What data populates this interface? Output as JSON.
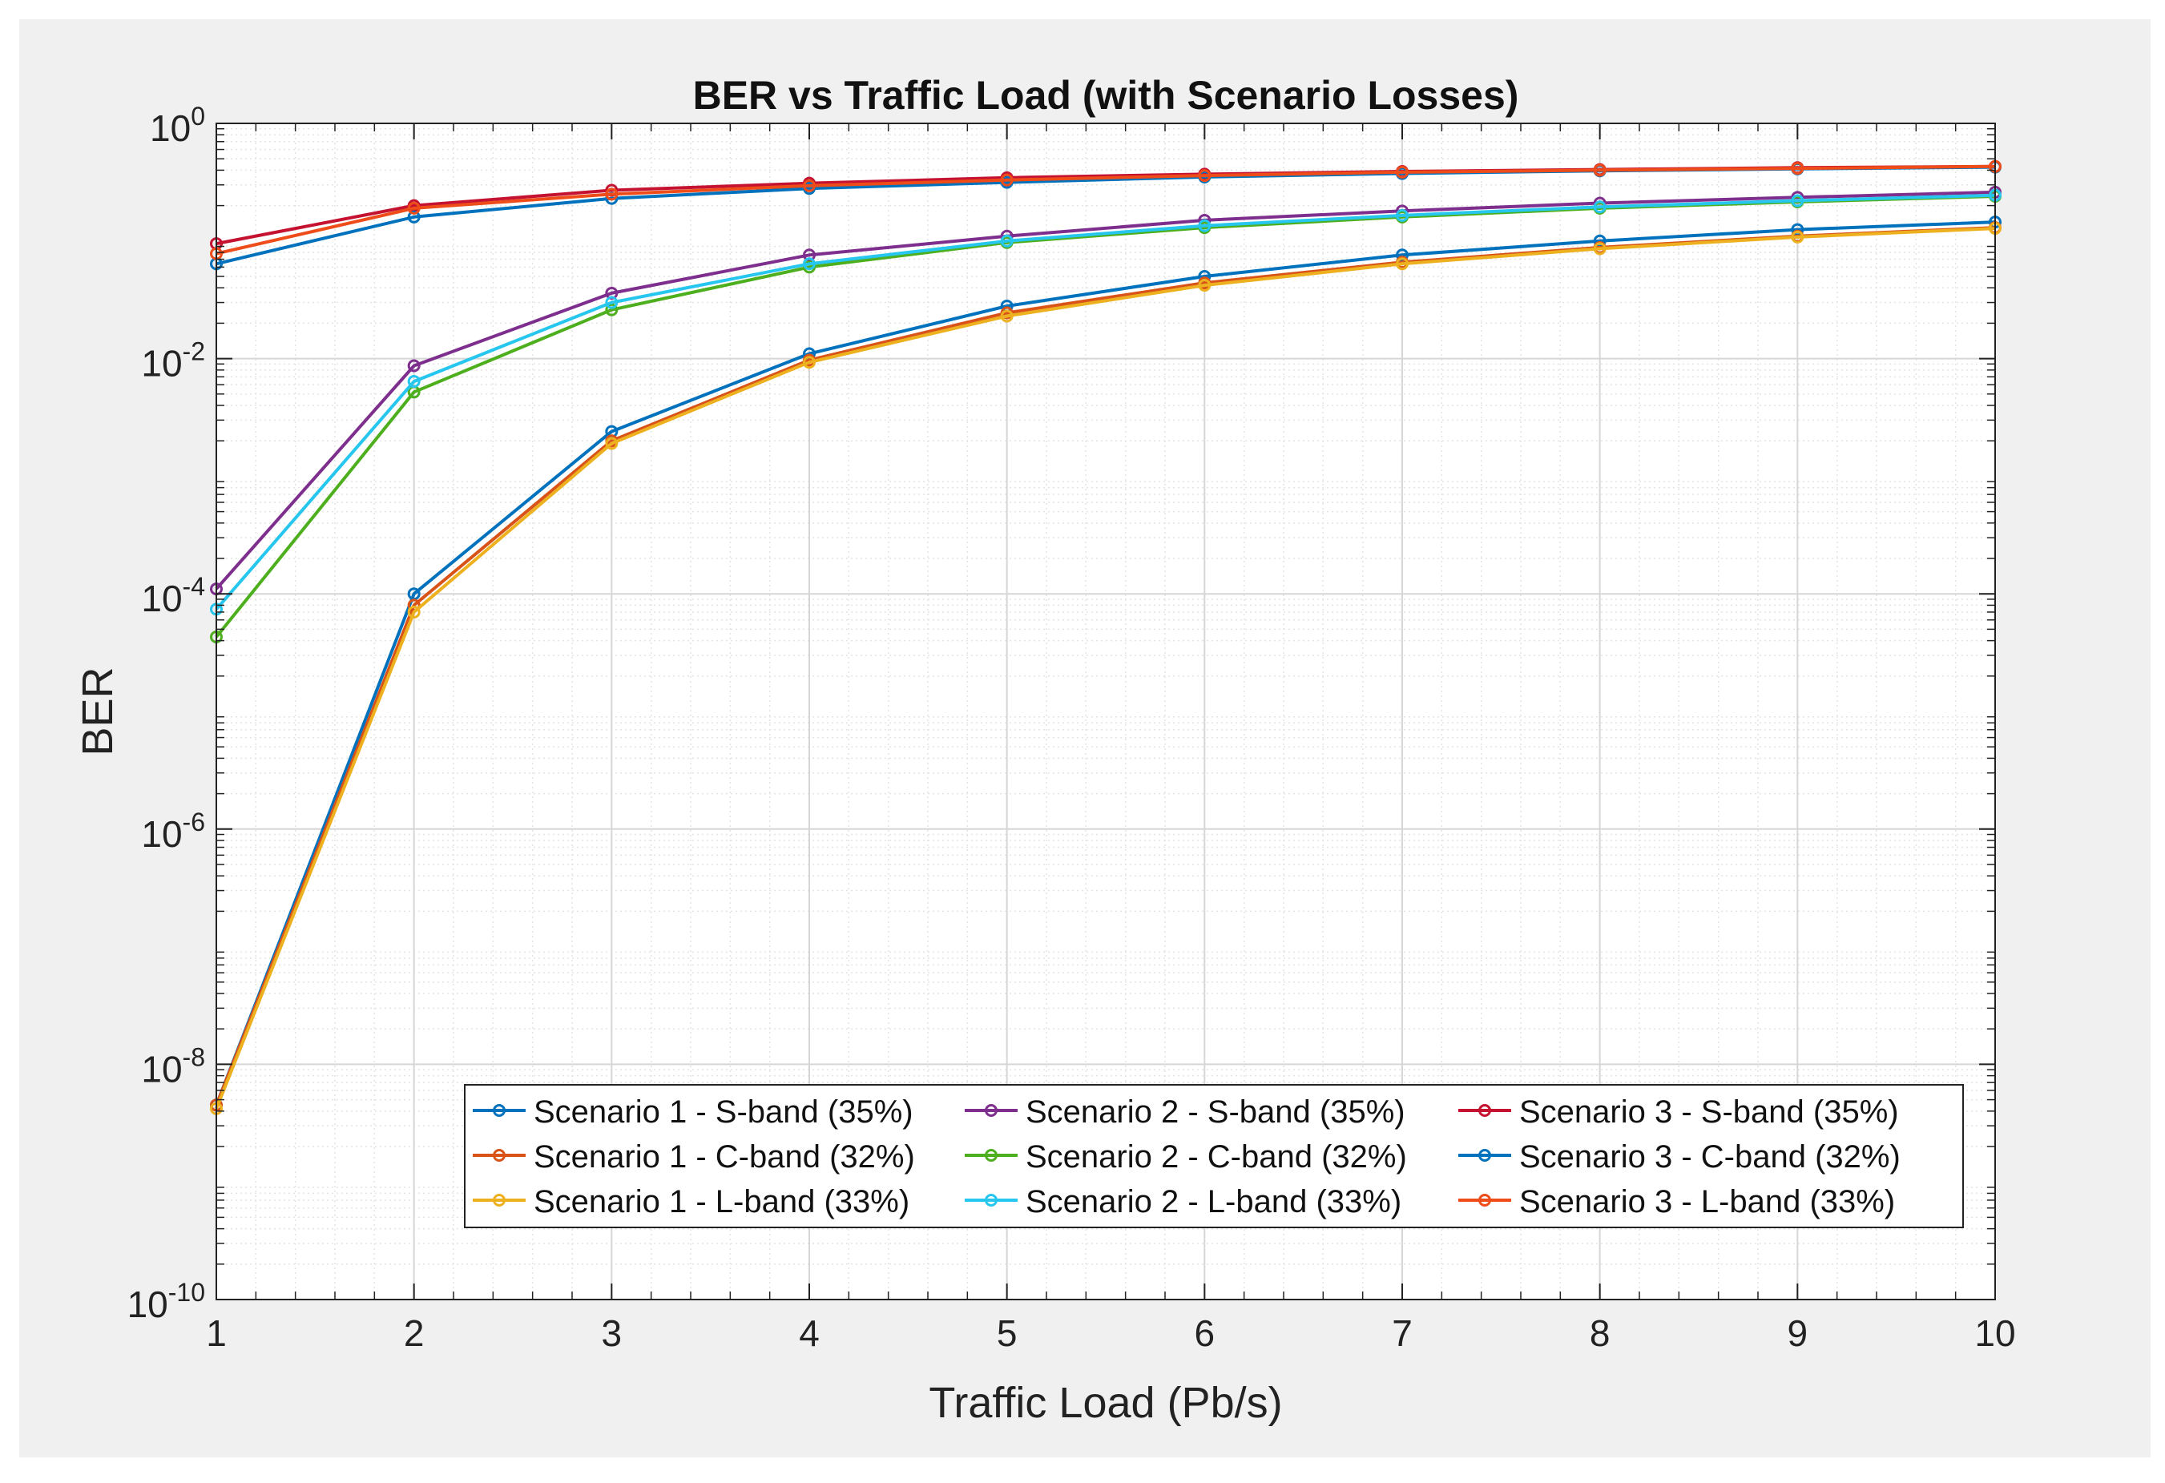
{
  "chart_data": {
    "type": "line",
    "title": "BER vs Traffic Load (with Scenario Losses)",
    "xlabel": "Traffic Load (Pb/s)",
    "ylabel": "BER",
    "x": [
      1,
      2,
      3,
      4,
      5,
      6,
      7,
      8,
      9,
      10
    ],
    "xlim": [
      1,
      10
    ],
    "ylim": [
      1e-10,
      1
    ],
    "yscale": "log",
    "grid": true,
    "minor_grid": true,
    "legend_location": "bottom-right",
    "legend_columns": 3,
    "xticks": [
      "1",
      "2",
      "3",
      "4",
      "5",
      "6",
      "7",
      "8",
      "9",
      "10"
    ],
    "yticks": [
      {
        "base": "10",
        "exp": "0",
        "value": 1
      },
      {
        "base": "10",
        "exp": "-2",
        "value": 0.01
      },
      {
        "base": "10",
        "exp": "-4",
        "value": 0.0001
      },
      {
        "base": "10",
        "exp": "-6",
        "value": 1e-06
      },
      {
        "base": "10",
        "exp": "-8",
        "value": 1e-08
      },
      {
        "base": "10",
        "exp": "-10",
        "value": 1e-10
      }
    ],
    "series": [
      {
        "name": "Scenario 1 - S-band (35%)",
        "color": "#0072bd",
        "values": [
          4.5e-09,
          0.0001,
          0.0024,
          0.011,
          0.028,
          0.05,
          0.076,
          0.1,
          0.125,
          0.145
        ]
      },
      {
        "name": "Scenario 1 - C-band (32%)",
        "color": "#d95319",
        "values": [
          4.5e-09,
          8e-05,
          0.002,
          0.0097,
          0.0245,
          0.044,
          0.066,
          0.088,
          0.11,
          0.13
        ]
      },
      {
        "name": "Scenario 1 - L-band (33%)",
        "color": "#edb120",
        "values": [
          4.2e-09,
          7e-05,
          0.0019,
          0.0093,
          0.023,
          0.042,
          0.064,
          0.086,
          0.108,
          0.128
        ]
      },
      {
        "name": "Scenario 2 - S-band (35%)",
        "color": "#7e2f8e",
        "values": [
          0.00011,
          0.0087,
          0.036,
          0.076,
          0.11,
          0.15,
          0.18,
          0.21,
          0.235,
          0.26
        ]
      },
      {
        "name": "Scenario 2 - C-band (32%)",
        "color": "#4daf1e",
        "values": [
          4.3e-05,
          0.0052,
          0.026,
          0.06,
          0.097,
          0.13,
          0.16,
          0.19,
          0.215,
          0.24
        ]
      },
      {
        "name": "Scenario 2 - L-band (33%)",
        "color": "#26c6ee",
        "values": [
          7.4e-05,
          0.0064,
          0.03,
          0.064,
          0.1,
          0.135,
          0.165,
          0.195,
          0.22,
          0.245
        ]
      },
      {
        "name": "Scenario 3 - S-band (35%)",
        "color": "#c41230",
        "values": [
          0.095,
          0.2,
          0.27,
          0.31,
          0.345,
          0.37,
          0.39,
          0.405,
          0.42,
          0.43
        ]
      },
      {
        "name": "Scenario 3 - C-band (32%)",
        "color": "#0072bd",
        "values": [
          0.064,
          0.16,
          0.23,
          0.28,
          0.315,
          0.35,
          0.375,
          0.395,
          0.41,
          0.425
        ]
      },
      {
        "name": "Scenario 3 - L-band (33%)",
        "color": "#ee4d1a",
        "values": [
          0.078,
          0.19,
          0.25,
          0.295,
          0.33,
          0.36,
          0.385,
          0.4,
          0.415,
          0.43
        ]
      }
    ]
  }
}
